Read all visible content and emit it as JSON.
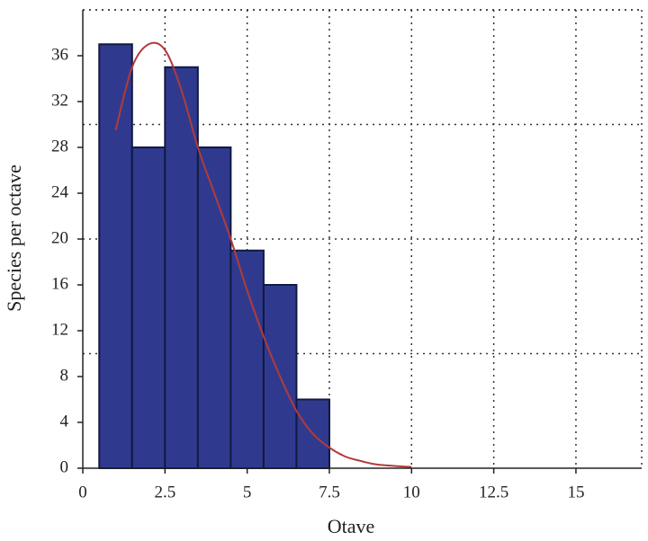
{
  "chart_data": {
    "type": "histogram",
    "xlabel": "Otave",
    "ylabel": "Species per octave",
    "bins": [
      0.5,
      1.5,
      2.5,
      3.5,
      4.5,
      5.5,
      6.5,
      7.5
    ],
    "counts": [
      37,
      28,
      35,
      28,
      19,
      16,
      6
    ],
    "color": "#2f3a8f",
    "edgecolor": "#111a40",
    "curve": {
      "color": "#b23a3a",
      "x": [
        1,
        1.5,
        2,
        2.5,
        3,
        3.5,
        4,
        4.5,
        5,
        5.5,
        6,
        6.5,
        7,
        7.5,
        8,
        8.5,
        9,
        10
      ],
      "y": [
        29.5,
        35,
        37,
        36.5,
        33,
        28,
        24,
        20,
        15.5,
        11.5,
        8,
        5,
        3,
        1.8,
        1,
        0.6,
        0.3,
        0.1
      ]
    },
    "xlim": [
      0,
      17
    ],
    "ylim": [
      0,
      40
    ],
    "xticks": [
      0,
      2.5,
      5,
      7.5,
      10,
      12.5,
      15
    ],
    "yticks": [
      0,
      4,
      8,
      12,
      16,
      20,
      24,
      28,
      32,
      36
    ],
    "grid": true,
    "ygrid": [
      10,
      20,
      30,
      40
    ]
  }
}
